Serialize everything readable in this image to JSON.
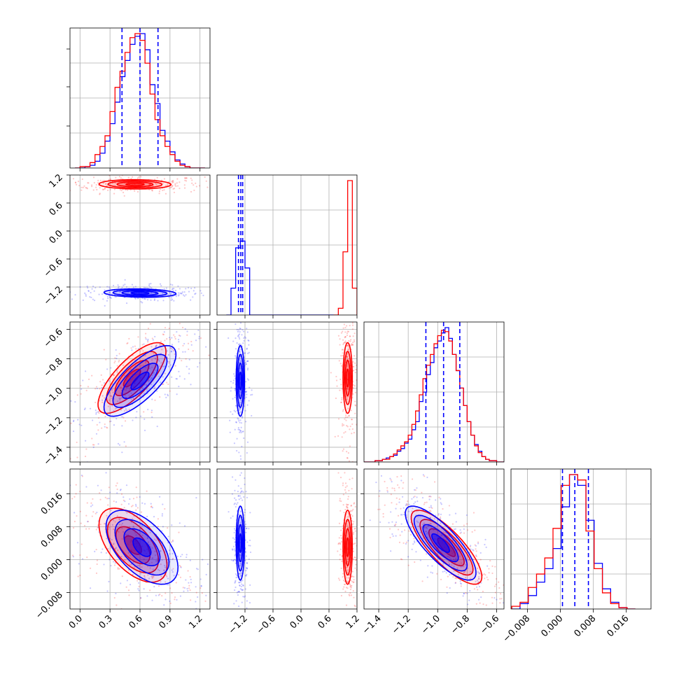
{
  "chart_data": {
    "type": "corner",
    "title": "",
    "series": [
      {
        "name": "",
        "color": "#0000ff"
      },
      {
        "name": "",
        "color": "#ff0000"
      }
    ],
    "parameters": [
      {
        "index": 0,
        "range": [
          -0.1,
          1.3
        ],
        "ticks": [
          0.0,
          0.3,
          0.6,
          0.9,
          1.2
        ],
        "tick_labels": [
          "0.0",
          "0.3",
          "0.6",
          "0.9",
          "1.2"
        ]
      },
      {
        "index": 1,
        "range": [
          -1.8,
          1.2
        ],
        "ticks": [
          -1.2,
          -0.6,
          0.0,
          0.6,
          1.2
        ],
        "tick_labels": [
          "−1.2",
          "−0.6",
          "0.0",
          "0.6",
          "1.2"
        ]
      },
      {
        "index": 2,
        "range": [
          -1.5,
          -0.55
        ],
        "ticks": [
          -1.4,
          -1.2,
          -1.0,
          -0.8,
          -0.6
        ],
        "tick_labels": [
          "−1.4",
          "−1.2",
          "−1.0",
          "−0.8",
          "−0.6"
        ]
      },
      {
        "index": 3,
        "range": [
          -0.012,
          0.022
        ],
        "ticks": [
          -0.008,
          0.0,
          0.008,
          0.016
        ],
        "tick_labels": [
          "−0.008",
          "0.000",
          "0.008",
          "0.016"
        ]
      }
    ],
    "marginals": [
      {
        "param": 0,
        "quantile_lines": [
          0.42,
          0.6,
          0.78
        ],
        "edges": [
          -0.05,
          0.0,
          0.05,
          0.1,
          0.15,
          0.2,
          0.25,
          0.3,
          0.35,
          0.4,
          0.45,
          0.5,
          0.55,
          0.6,
          0.65,
          0.7,
          0.75,
          0.8,
          0.85,
          0.9,
          0.95,
          1.0,
          1.05,
          1.1,
          1.15,
          1.2,
          1.25
        ],
        "blue": [
          0.0,
          0.0,
          0.01,
          0.02,
          0.05,
          0.11,
          0.2,
          0.33,
          0.49,
          0.68,
          0.8,
          0.92,
          0.98,
          1.0,
          0.88,
          0.62,
          0.48,
          0.28,
          0.2,
          0.12,
          0.06,
          0.03,
          0.01,
          0.0,
          0.0,
          0.0
        ],
        "red": [
          0.0,
          0.01,
          0.01,
          0.04,
          0.1,
          0.16,
          0.24,
          0.42,
          0.6,
          0.72,
          0.86,
          0.97,
          1.0,
          0.95,
          0.78,
          0.55,
          0.36,
          0.24,
          0.16,
          0.1,
          0.05,
          0.02,
          0.01,
          0.0,
          0.0,
          0.0
        ]
      },
      {
        "param": 1,
        "quantile_lines": [
          -1.34,
          -1.29,
          -1.25
        ],
        "edges": [
          -1.6,
          -1.5,
          -1.4,
          -1.3,
          -1.2,
          -1.1,
          0.7,
          0.8,
          0.9,
          1.0,
          1.1,
          1.2
        ],
        "blue": [
          0.0,
          0.2,
          0.5,
          0.55,
          0.35,
          0.0,
          null,
          null,
          null,
          null,
          null
        ],
        "red": [
          null,
          null,
          null,
          null,
          null,
          null,
          0.0,
          0.05,
          0.47,
          1.0,
          0.2
        ]
      },
      {
        "param": 2,
        "quantile_lines": [
          -1.08,
          -0.96,
          -0.85
        ],
        "edges": [
          -1.5,
          -1.475,
          -1.45,
          -1.425,
          -1.4,
          -1.375,
          -1.35,
          -1.325,
          -1.3,
          -1.275,
          -1.25,
          -1.225,
          -1.2,
          -1.175,
          -1.15,
          -1.125,
          -1.1,
          -1.075,
          -1.05,
          -1.025,
          -1.0,
          -0.975,
          -0.95,
          -0.925,
          -0.9,
          -0.875,
          -0.85,
          -0.825,
          -0.8,
          -0.775,
          -0.75,
          -0.725,
          -0.7,
          -0.675,
          -0.65,
          -0.625,
          -0.6,
          -0.575,
          -0.55
        ],
        "blue": [
          0.0,
          0.0,
          0.0,
          0.01,
          0.01,
          0.02,
          0.03,
          0.04,
          0.05,
          0.08,
          0.1,
          0.14,
          0.17,
          0.24,
          0.3,
          0.45,
          0.52,
          0.65,
          0.74,
          0.85,
          0.9,
          0.96,
          1.0,
          0.92,
          0.8,
          0.68,
          0.55,
          0.42,
          0.3,
          0.2,
          0.13,
          0.08,
          0.04,
          0.02,
          0.01,
          0.01,
          0.0,
          0.0
        ],
        "red": [
          0.0,
          0.0,
          0.0,
          0.01,
          0.01,
          0.02,
          0.02,
          0.04,
          0.06,
          0.09,
          0.12,
          0.15,
          0.2,
          0.28,
          0.38,
          0.5,
          0.62,
          0.72,
          0.8,
          0.88,
          0.94,
          0.98,
          0.97,
          0.9,
          0.8,
          0.68,
          0.55,
          0.42,
          0.3,
          0.2,
          0.12,
          0.07,
          0.04,
          0.02,
          0.01,
          0.01,
          0.0,
          0.0
        ]
      },
      {
        "param": 3,
        "quantile_lines": [
          0.0005,
          0.0035,
          0.0068
        ],
        "edges": [
          -0.0118,
          -0.0098,
          -0.0078,
          -0.0058,
          -0.0038,
          -0.0018,
          0.0002,
          0.0022,
          0.0042,
          0.0062,
          0.0082,
          0.0102,
          0.0122,
          0.0142,
          0.0162,
          0.0182
        ],
        "blue": [
          0.0,
          0.04,
          0.1,
          0.2,
          0.3,
          0.45,
          0.76,
          1.0,
          0.92,
          0.66,
          0.34,
          0.15,
          0.05,
          0.01,
          0.0
        ],
        "red": [
          0.02,
          0.05,
          0.16,
          0.26,
          0.38,
          0.6,
          0.92,
          1.0,
          0.96,
          0.58,
          0.3,
          0.12,
          0.04,
          0.01,
          0.0
        ]
      }
    ],
    "joints": [
      {
        "x_param": 0,
        "y_param": 1,
        "blue": {
          "center": [
            0.6,
            -1.33
          ],
          "sigma": [
            0.18,
            0.045
          ],
          "rho": -0.15
        },
        "red": {
          "center": [
            0.55,
            1.0
          ],
          "sigma": [
            0.18,
            0.05
          ],
          "rho": -0.05
        }
      },
      {
        "x_param": 0,
        "y_param": 2,
        "blue": {
          "center": [
            0.6,
            -0.95
          ],
          "sigma": [
            0.18,
            0.12
          ],
          "rho": 0.75
        },
        "red": {
          "center": [
            0.52,
            -0.93
          ],
          "sigma": [
            0.17,
            0.12
          ],
          "rho": 0.75
        }
      },
      {
        "x_param": 1,
        "y_param": 2,
        "blue": {
          "center": [
            -1.3,
            -0.95
          ],
          "sigma": [
            0.045,
            0.12
          ],
          "rho": 0.0
        },
        "red": {
          "center": [
            1.0,
            -0.93
          ],
          "sigma": [
            0.05,
            0.12
          ],
          "rho": 0.0
        }
      },
      {
        "x_param": 0,
        "y_param": 3,
        "blue": {
          "center": [
            0.62,
            0.003
          ],
          "sigma": [
            0.18,
            0.0045
          ],
          "rho": -0.55
        },
        "red": {
          "center": [
            0.53,
            0.0035
          ],
          "sigma": [
            0.17,
            0.0045
          ],
          "rho": -0.55
        }
      },
      {
        "x_param": 1,
        "y_param": 3,
        "blue": {
          "center": [
            -1.3,
            0.004
          ],
          "sigma": [
            0.045,
            0.0045
          ],
          "rho": 0.0
        },
        "red": {
          "center": [
            1.0,
            0.003
          ],
          "sigma": [
            0.05,
            0.0045
          ],
          "rho": 0.0
        }
      },
      {
        "x_param": 2,
        "y_param": 3,
        "blue": {
          "center": [
            -0.98,
            0.004
          ],
          "sigma": [
            0.12,
            0.0045
          ],
          "rho": -0.8
        },
        "red": {
          "center": [
            -0.94,
            0.003
          ],
          "sigma": [
            0.12,
            0.0045
          ],
          "rho": -0.8
        }
      }
    ],
    "contour_levels_sigma": [
      0.5,
      1.0,
      1.5,
      2.0
    ],
    "grid": true
  }
}
